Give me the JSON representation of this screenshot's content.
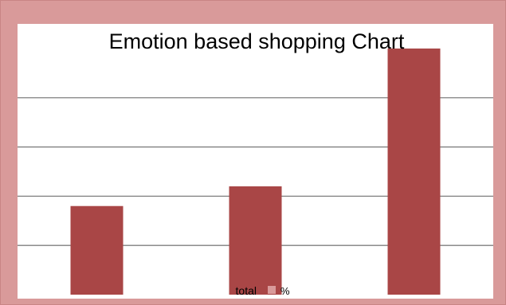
{
  "chart_data": {
    "type": "bar",
    "title": "Emotion based shopping Chart",
    "categories": [
      "",
      "",
      ""
    ],
    "series": [
      {
        "name": "%",
        "values": [
          1.8,
          2.2,
          5.0
        ]
      }
    ],
    "ylim": [
      0,
      5.5
    ],
    "grid": true,
    "legend": {
      "position": "bottom",
      "title": "total",
      "entries": [
        "%"
      ]
    },
    "xlabel": "",
    "ylabel": ""
  },
  "colors": {
    "frame": "#d99a9a",
    "frame_border": "#c98585",
    "plot_background": "#ffffff",
    "bar": "#a94646",
    "gridline": "#7f7f7f",
    "legend_swatch": "#d99a9a",
    "text": "#000000"
  }
}
